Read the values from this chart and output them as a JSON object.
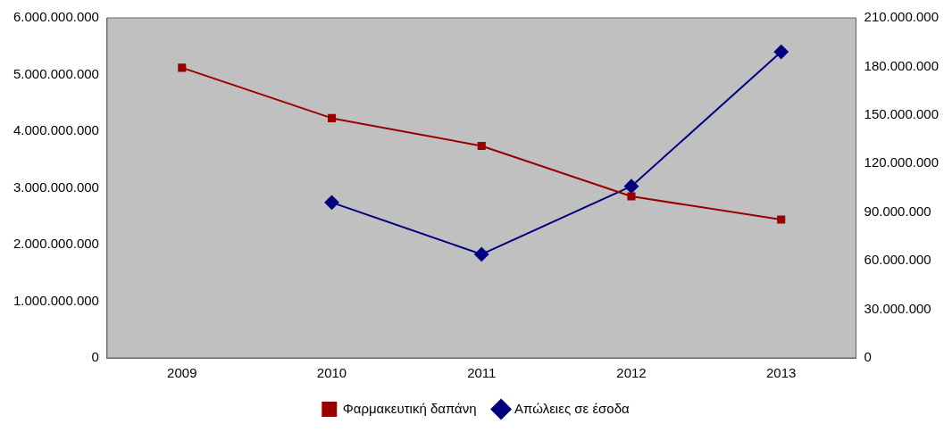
{
  "chart_data": {
    "type": "line",
    "categories": [
      "2009",
      "2010",
      "2011",
      "2012",
      "2013"
    ],
    "series": [
      {
        "name": "Φαρμακευτική δαπάνη",
        "color": "#990000",
        "marker": "square",
        "values": [
          5120000000,
          4230000000,
          3740000000,
          2850000000,
          2440000000
        ]
      },
      {
        "name": "Απώλειες σε έσοδα",
        "color": "#000080",
        "marker": "diamond",
        "axis": "y2",
        "values": [
          null,
          96000000,
          64000000,
          106000000,
          189000000
        ]
      }
    ],
    "ylim": [
      0,
      6000000000
    ],
    "yticks": [
      {
        "value": 0,
        "label": "0"
      },
      {
        "value": 1000000000,
        "label": "1.000.000.000"
      },
      {
        "value": 2000000000,
        "label": "2.000.000.000"
      },
      {
        "value": 3000000000,
        "label": "3.000.000.000"
      },
      {
        "value": 4000000000,
        "label": "4.000.000.000"
      },
      {
        "value": 5000000000,
        "label": "5.000.000.000"
      },
      {
        "value": 6000000000,
        "label": "6.000.000.000"
      }
    ],
    "y2lim": [
      0,
      210000000
    ],
    "y2ticks": [
      {
        "value": 0,
        "label": "0"
      },
      {
        "value": 30000000,
        "label": "30.000.000"
      },
      {
        "value": 60000000,
        "label": "60.000.000"
      },
      {
        "value": 90000000,
        "label": "90.000.000"
      },
      {
        "value": 120000000,
        "label": "120.000.000"
      },
      {
        "value": 150000000,
        "label": "150.000.000"
      },
      {
        "value": 180000000,
        "label": "180.000.000"
      },
      {
        "value": 210000000,
        "label": "210.000.000"
      }
    ],
    "grid": false,
    "legend": "bottom",
    "line_style": "solid"
  }
}
